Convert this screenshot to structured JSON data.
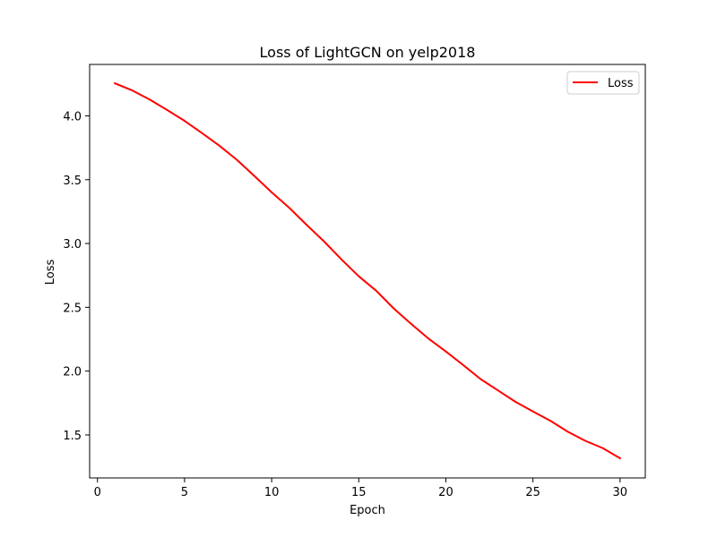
{
  "chart_data": {
    "type": "line",
    "title": "Loss of LightGCN on yelp2018",
    "xlabel": "Epoch",
    "ylabel": "Loss",
    "xlim": [
      -0.45,
      31.45
    ],
    "ylim": [
      1.163,
      4.403
    ],
    "xticks": [
      0,
      5,
      10,
      15,
      20,
      25,
      30
    ],
    "yticks": [
      1.5,
      2.0,
      2.5,
      3.0,
      3.5,
      4.0
    ],
    "xtick_labels": [
      "0",
      "5",
      "10",
      "15",
      "20",
      "25",
      "30"
    ],
    "ytick_labels": [
      "1.5",
      "2.0",
      "2.5",
      "3.0",
      "3.5",
      "4.0"
    ],
    "grid": false,
    "legend": {
      "position": "upper right"
    },
    "series": [
      {
        "name": "Loss",
        "color": "#ff0000",
        "x": [
          1,
          2,
          3,
          4,
          5,
          6,
          7,
          8,
          9,
          10,
          11,
          12,
          13,
          14,
          15,
          16,
          17,
          18,
          19,
          20,
          21,
          22,
          23,
          24,
          25,
          26,
          27,
          28,
          29,
          30
        ],
        "values": [
          4.255,
          4.199,
          4.128,
          4.046,
          3.961,
          3.865,
          3.766,
          3.656,
          3.53,
          3.401,
          3.281,
          3.147,
          3.017,
          2.876,
          2.743,
          2.63,
          2.492,
          2.371,
          2.255,
          2.154,
          2.047,
          1.937,
          1.848,
          1.759,
          1.684,
          1.611,
          1.525,
          1.454,
          1.397,
          1.317
        ]
      }
    ]
  }
}
